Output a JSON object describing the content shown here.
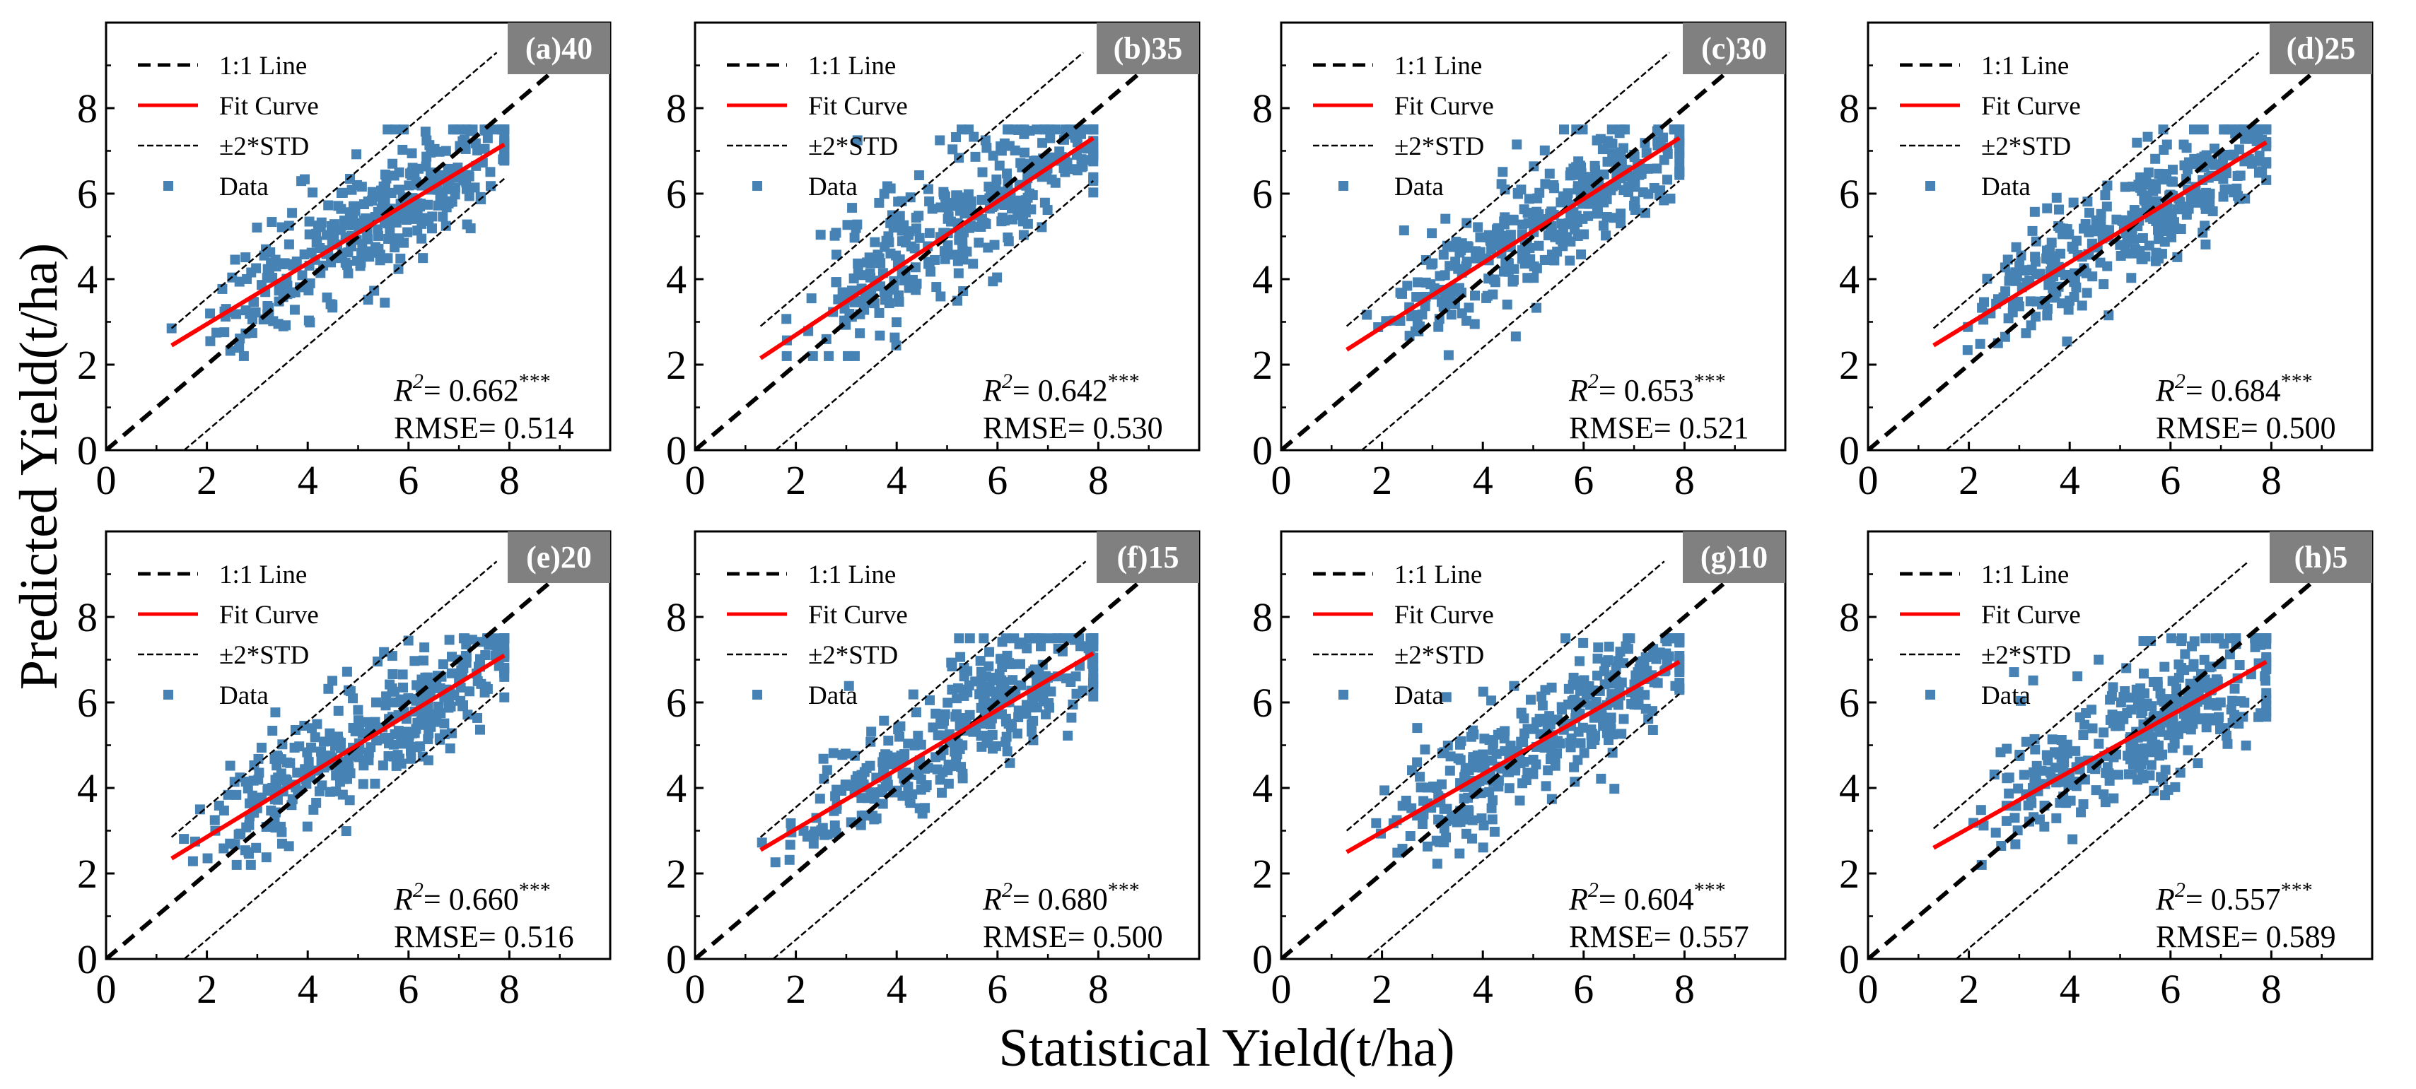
{
  "figure": {
    "ylabel": "Predicted Yield(t/ha)",
    "xlabel": "Statistical Yield(t/ha)",
    "colors": {
      "one_to_one": "#000000",
      "fit": "#ff0000",
      "std": "#000000",
      "data": "#4682b4",
      "tag_bg": "#808080",
      "tag_text": "#ffffff"
    }
  },
  "chart_data": [
    {
      "type": "scatter",
      "tag": "(a)40",
      "r2_label": "R",
      "r2_sup": "2",
      "r2_text": "= 0.662",
      "sig": "***",
      "rmse_text": "RMSE= 0.514",
      "fit": {
        "x1": 1.3,
        "y1": 2.45,
        "x2": 7.9,
        "y2": 7.15
      },
      "std_offset": 1.55,
      "xlim": [
        0,
        10
      ],
      "ylim": [
        0,
        10
      ],
      "xticks": [
        "0",
        "2",
        "4",
        "6",
        "8"
      ],
      "yticks": [
        "0",
        "2",
        "4",
        "6",
        "8"
      ],
      "legend": [
        "1:1 Line",
        "Fit Curve",
        "±2*STD",
        "Data"
      ],
      "seed": 11
    },
    {
      "type": "scatter",
      "tag": "(b)35",
      "r2_label": "R",
      "r2_sup": "2",
      "r2_text": "= 0.642",
      "sig": "***",
      "rmse_text": "RMSE= 0.530",
      "fit": {
        "x1": 1.3,
        "y1": 2.15,
        "x2": 7.9,
        "y2": 7.3
      },
      "std_offset": 1.6,
      "xlim": [
        0,
        10
      ],
      "ylim": [
        0,
        10
      ],
      "xticks": [
        "0",
        "2",
        "4",
        "6",
        "8"
      ],
      "yticks": [
        "0",
        "2",
        "4",
        "6",
        "8"
      ],
      "legend": [
        "1:1 Line",
        "Fit Curve",
        "±2*STD",
        "Data"
      ],
      "seed": 23
    },
    {
      "type": "scatter",
      "tag": "(c)30",
      "r2_label": "R",
      "r2_sup": "2",
      "r2_text": "= 0.653",
      "sig": "***",
      "rmse_text": "RMSE= 0.521",
      "fit": {
        "x1": 1.3,
        "y1": 2.35,
        "x2": 7.9,
        "y2": 7.3
      },
      "std_offset": 1.6,
      "xlim": [
        0,
        10
      ],
      "ylim": [
        0,
        10
      ],
      "xticks": [
        "0",
        "2",
        "4",
        "6",
        "8"
      ],
      "yticks": [
        "0",
        "2",
        "4",
        "6",
        "8"
      ],
      "legend": [
        "1:1 Line",
        "Fit Curve",
        "±2*STD",
        "Data"
      ],
      "seed": 37
    },
    {
      "type": "scatter",
      "tag": "(d)25",
      "r2_label": "R",
      "r2_sup": "2",
      "r2_text": "= 0.684",
      "sig": "***",
      "rmse_text": "RMSE= 0.500",
      "fit": {
        "x1": 1.3,
        "y1": 2.45,
        "x2": 7.9,
        "y2": 7.2
      },
      "std_offset": 1.55,
      "xlim": [
        0,
        10
      ],
      "ylim": [
        0,
        10
      ],
      "xticks": [
        "0",
        "2",
        "4",
        "6",
        "8"
      ],
      "yticks": [
        "0",
        "2",
        "4",
        "6",
        "8"
      ],
      "legend": [
        "1:1 Line",
        "Fit Curve",
        "±2*STD",
        "Data"
      ],
      "seed": 41
    },
    {
      "type": "scatter",
      "tag": "(e)20",
      "r2_label": "R",
      "r2_sup": "2",
      "r2_text": "= 0.660",
      "sig": "***",
      "rmse_text": "RMSE= 0.516",
      "fit": {
        "x1": 1.3,
        "y1": 2.35,
        "x2": 7.9,
        "y2": 7.1
      },
      "std_offset": 1.55,
      "xlim": [
        0,
        10
      ],
      "ylim": [
        0,
        10
      ],
      "xticks": [
        "0",
        "2",
        "4",
        "6",
        "8"
      ],
      "yticks": [
        "0",
        "2",
        "4",
        "6",
        "8"
      ],
      "legend": [
        "1:1 Line",
        "Fit Curve",
        "±2*STD",
        "Data"
      ],
      "seed": 53
    },
    {
      "type": "scatter",
      "tag": "(f)15",
      "r2_label": "R",
      "r2_sup": "2",
      "r2_text": "= 0.680",
      "sig": "***",
      "rmse_text": "RMSE= 0.500",
      "fit": {
        "x1": 1.3,
        "y1": 2.55,
        "x2": 7.9,
        "y2": 7.15
      },
      "std_offset": 1.55,
      "xlim": [
        0,
        10
      ],
      "ylim": [
        0,
        10
      ],
      "xticks": [
        "0",
        "2",
        "4",
        "6",
        "8"
      ],
      "yticks": [
        "0",
        "2",
        "4",
        "6",
        "8"
      ],
      "legend": [
        "1:1 Line",
        "Fit Curve",
        "±2*STD",
        "Data"
      ],
      "seed": 67
    },
    {
      "type": "scatter",
      "tag": "(g)10",
      "r2_label": "R",
      "r2_sup": "2",
      "r2_text": "= 0.604",
      "sig": "***",
      "rmse_text": "RMSE= 0.557",
      "fit": {
        "x1": 1.3,
        "y1": 2.5,
        "x2": 7.9,
        "y2": 6.95
      },
      "std_offset": 1.7,
      "xlim": [
        0,
        10
      ],
      "ylim": [
        0,
        10
      ],
      "xticks": [
        "0",
        "2",
        "4",
        "6",
        "8"
      ],
      "yticks": [
        "0",
        "2",
        "4",
        "6",
        "8"
      ],
      "legend": [
        "1:1 Line",
        "Fit Curve",
        "±2*STD",
        "Data"
      ],
      "seed": 79
    },
    {
      "type": "scatter",
      "tag": "(h)5",
      "r2_label": "R",
      "r2_sup": "2",
      "r2_text": "= 0.557",
      "sig": "***",
      "rmse_text": "RMSE= 0.589",
      "fit": {
        "x1": 1.3,
        "y1": 2.6,
        "x2": 7.9,
        "y2": 6.95
      },
      "std_offset": 1.75,
      "xlim": [
        0,
        10
      ],
      "ylim": [
        0,
        10
      ],
      "xticks": [
        "0",
        "2",
        "4",
        "6",
        "8"
      ],
      "yticks": [
        "0",
        "2",
        "4",
        "6",
        "8"
      ],
      "legend": [
        "1:1 Line",
        "Fit Curve",
        "±2*STD",
        "Data"
      ],
      "seed": 97
    }
  ]
}
